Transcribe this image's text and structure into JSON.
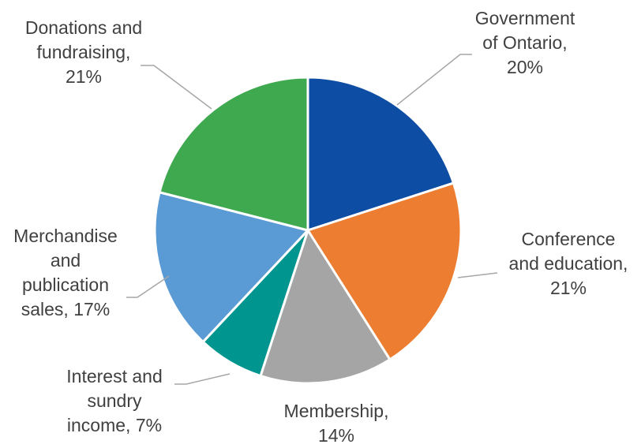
{
  "chart_data": {
    "type": "pie",
    "start_angle_deg": 0,
    "direction": "clockwise",
    "slices": [
      {
        "name": "Government of Ontario",
        "value": 20,
        "color": "#0E4DA4",
        "label_lines": [
          "Government",
          "of Ontario,",
          "20%"
        ]
      },
      {
        "name": "Conference and education",
        "value": 21,
        "color": "#ED7D31",
        "label_lines": [
          "Conference",
          "and education,",
          "21%"
        ]
      },
      {
        "name": "Membership",
        "value": 14,
        "color": "#A5A5A5",
        "label_lines": [
          "Membership,",
          "14%"
        ]
      },
      {
        "name": "Interest and sundry income",
        "value": 7,
        "color": "#00968F",
        "label_lines": [
          "Interest and",
          "sundry",
          "income, 7%"
        ]
      },
      {
        "name": "Merchandise and publication sales",
        "value": 17,
        "color": "#5B9BD5",
        "label_lines": [
          "Merchandise",
          "and",
          "publication",
          "sales, 17%"
        ]
      },
      {
        "name": "Donations and fundraising",
        "value": 21,
        "color": "#3FA950",
        "label_lines": [
          "Donations and",
          "fundraising,",
          "21%"
        ]
      }
    ]
  }
}
